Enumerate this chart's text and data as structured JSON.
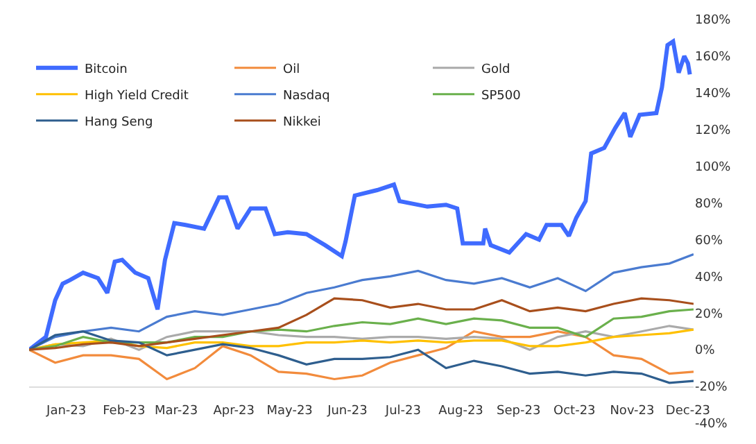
{
  "chart_data": {
    "type": "line",
    "x": [
      "2023-01-01",
      "2023-01-15",
      "2023-01-30",
      "2023-02-14",
      "2023-03-01",
      "2023-03-16",
      "2023-03-31",
      "2023-04-15",
      "2023-04-30",
      "2023-05-15",
      "2023-05-30",
      "2023-06-14",
      "2023-06-29",
      "2023-07-14",
      "2023-07-29",
      "2023-08-13",
      "2023-08-28",
      "2023-09-12",
      "2023-09-27",
      "2023-10-12",
      "2023-10-27",
      "2023-11-11",
      "2023-11-26",
      "2023-12-11",
      "2023-12-24"
    ],
    "series": [
      {
        "name": "Bitcoin",
        "color": "#3f6bff",
        "x": [
          "2023-01-01",
          "2023-01-10",
          "2023-01-15",
          "2023-01-19",
          "2023-01-23",
          "2023-01-30",
          "2023-02-07",
          "2023-02-12",
          "2023-02-16",
          "2023-02-20",
          "2023-02-27",
          "2023-03-06",
          "2023-03-11",
          "2023-03-15",
          "2023-03-20",
          "2023-03-26",
          "2023-04-05",
          "2023-04-13",
          "2023-04-17",
          "2023-04-23",
          "2023-04-30",
          "2023-05-08",
          "2023-05-13",
          "2023-05-20",
          "2023-05-30",
          "2023-06-09",
          "2023-06-18",
          "2023-06-20",
          "2023-06-25",
          "2023-07-07",
          "2023-07-16",
          "2023-07-19",
          "2023-08-03",
          "2023-08-13",
          "2023-08-19",
          "2023-08-22",
          "2023-09-02",
          "2023-09-03",
          "2023-09-06",
          "2023-09-16",
          "2023-09-25",
          "2023-10-02",
          "2023-10-06",
          "2023-10-14",
          "2023-10-18",
          "2023-10-22",
          "2023-10-27",
          "2023-10-30",
          "2023-11-06",
          "2023-11-12",
          "2023-11-17",
          "2023-11-20",
          "2023-11-25",
          "2023-12-04",
          "2023-12-07",
          "2023-12-10",
          "2023-12-13",
          "2023-12-16",
          "2023-12-19",
          "2023-12-21",
          "2023-12-22"
        ],
        "values": [
          0,
          7,
          27,
          36,
          38,
          42,
          39,
          31,
          48,
          49,
          42,
          39,
          22,
          49,
          69,
          68,
          66,
          83,
          83,
          66,
          77,
          77,
          63,
          64,
          63,
          57,
          51,
          59,
          84,
          87,
          90,
          81,
          78,
          79,
          77,
          58,
          58,
          66,
          57,
          53,
          63,
          60,
          68,
          68,
          62,
          72,
          81,
          107,
          110,
          121,
          129,
          116,
          128,
          129,
          143,
          166,
          168,
          151,
          160,
          156,
          150
        ]
      },
      {
        "name": "Oil",
        "color": "#f28b3c",
        "values": [
          0,
          -7,
          -3,
          -3,
          -5,
          -16,
          -10,
          2,
          -3,
          -12,
          -13,
          -16,
          -14,
          -7,
          -3,
          1,
          10,
          7,
          7,
          10,
          7,
          -3,
          -5,
          -13,
          -12
        ]
      },
      {
        "name": "Gold",
        "color": "#aaaaaa",
        "values": [
          0,
          3,
          2,
          6,
          0,
          7,
          10,
          10,
          10,
          8,
          7,
          7,
          6,
          7,
          7,
          6,
          7,
          6,
          0,
          7,
          10,
          7,
          10,
          13,
          11
        ]
      },
      {
        "name": "High Yield Credit",
        "color": "#ffc000",
        "values": [
          0,
          3,
          4,
          5,
          2,
          1,
          4,
          4,
          2,
          2,
          4,
          4,
          5,
          4,
          5,
          4,
          5,
          5,
          2,
          2,
          4,
          7,
          8,
          9,
          11
        ]
      },
      {
        "name": "Nasdaq",
        "color": "#4a7bd0",
        "values": [
          0,
          7,
          10,
          12,
          10,
          18,
          21,
          19,
          22,
          25,
          31,
          34,
          38,
          40,
          43,
          38,
          36,
          39,
          34,
          39,
          32,
          42,
          45,
          47,
          52
        ]
      },
      {
        "name": "SP500",
        "color": "#6ab04c",
        "values": [
          0,
          2,
          7,
          4,
          4,
          4,
          7,
          7,
          10,
          11,
          10,
          13,
          15,
          14,
          17,
          14,
          17,
          16,
          12,
          12,
          7,
          17,
          18,
          21,
          22
        ]
      },
      {
        "name": "Hang Seng",
        "color": "#2e5e8e",
        "values": [
          0,
          8,
          10,
          5,
          4,
          -3,
          0,
          3,
          1,
          -3,
          -8,
          -5,
          -5,
          -4,
          0,
          -10,
          -6,
          -9,
          -13,
          -12,
          -14,
          -12,
          -13,
          -18,
          -17
        ]
      },
      {
        "name": "Nikkei",
        "color": "#a84f1c",
        "values": [
          0,
          1,
          3,
          4,
          2,
          4,
          6,
          8,
          10,
          12,
          19,
          28,
          27,
          23,
          25,
          22,
          22,
          27,
          21,
          23,
          21,
          25,
          28,
          27,
          25
        ]
      }
    ],
    "xlim": [
      "2023-01-01",
      "2023-12-24"
    ],
    "xticks": [
      {
        "value": "2023-01-21",
        "label": "Jan-23"
      },
      {
        "value": "2023-02-21",
        "label": "Feb-23"
      },
      {
        "value": "2023-03-21",
        "label": "Mar-23"
      },
      {
        "value": "2023-04-21",
        "label": "Apr-23"
      },
      {
        "value": "2023-05-21",
        "label": "May-23"
      },
      {
        "value": "2023-06-21",
        "label": "Jun-23"
      },
      {
        "value": "2023-07-21",
        "label": "Jul-23"
      },
      {
        "value": "2023-08-21",
        "label": "Aug-23"
      },
      {
        "value": "2023-09-21",
        "label": "Sep-23"
      },
      {
        "value": "2023-10-21",
        "label": "Oct-23"
      },
      {
        "value": "2023-11-21",
        "label": "Nov-23"
      },
      {
        "value": "2023-12-21",
        "label": "Dec-23"
      }
    ],
    "ylim": [
      -40,
      180
    ],
    "yticks": [
      {
        "value": -40,
        "label": "-40%"
      },
      {
        "value": -20,
        "label": "-20%"
      },
      {
        "value": 0,
        "label": "0%"
      },
      {
        "value": 20,
        "label": "20%"
      },
      {
        "value": 40,
        "label": "40%"
      },
      {
        "value": 60,
        "label": "60%"
      },
      {
        "value": 80,
        "label": "80%"
      },
      {
        "value": 100,
        "label": "100%"
      },
      {
        "value": 120,
        "label": "120%"
      },
      {
        "value": 140,
        "label": "140%"
      },
      {
        "value": 160,
        "label": "160%"
      },
      {
        "value": 180,
        "label": "180%"
      }
    ],
    "legend": "top left",
    "marker": "none",
    "line_style": "solid"
  }
}
